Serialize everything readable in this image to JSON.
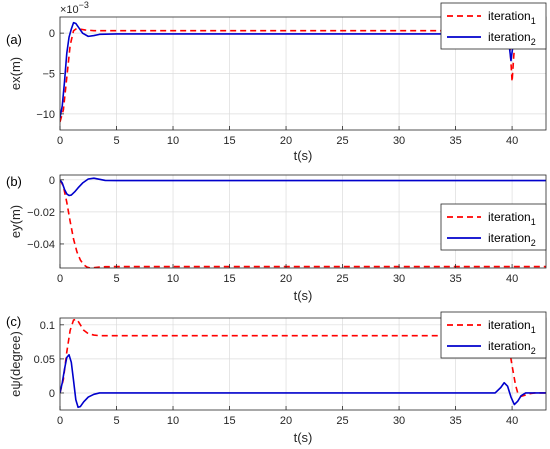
{
  "colors": {
    "iteration1": "#ff0000",
    "iteration2": "#0000cc",
    "grid": "#dcdcdc",
    "axis": "#262626"
  },
  "chart_data": [
    {
      "type": "line",
      "panel_label": "(a)",
      "exponent_label": "×10",
      "exponent_power": "−3",
      "xlabel": "t(s)",
      "ylabel": "ex(m)",
      "xlim": [
        0,
        43
      ],
      "ylim": [
        -12,
        2
      ],
      "xticks": [
        0,
        5,
        10,
        15,
        20,
        25,
        30,
        35,
        40
      ],
      "yticks": [
        -10,
        -5,
        0
      ],
      "grid": true,
      "legend_position": "top-right",
      "series": [
        {
          "name": "iteration",
          "subscript": "1",
          "style": "dashed",
          "x": [
            0,
            0.3,
            0.6,
            0.9,
            1.2,
            1.5,
            1.8,
            2.2,
            2.6,
            3,
            5,
            10,
            20,
            30,
            38.5,
            39,
            39.5,
            39.7,
            39.85,
            40,
            40.15,
            40.35,
            40.6,
            41,
            41.5,
            42,
            43
          ],
          "y": [
            -11,
            -9.5,
            -5.5,
            -1.5,
            0.3,
            0.6,
            0.5,
            0.4,
            0.35,
            0.3,
            0.3,
            0.3,
            0.3,
            0.3,
            0.3,
            0.6,
            1.2,
            0.5,
            -2.5,
            -6,
            -2.8,
            0.3,
            1.2,
            0.6,
            0.3,
            0.3,
            0.3
          ]
        },
        {
          "name": "iteration",
          "subscript": "2",
          "style": "solid",
          "x": [
            0,
            0.2,
            0.4,
            0.6,
            0.8,
            1,
            1.2,
            1.4,
            1.7,
            2,
            2.5,
            3,
            3.5,
            5,
            10,
            20,
            30,
            38.5,
            39,
            39.4,
            39.7,
            39.9,
            40.1,
            40.3,
            40.6,
            41,
            41.5,
            42,
            43
          ],
          "y": [
            -10.5,
            -9,
            -6,
            -2.5,
            -0.5,
            0.5,
            1.3,
            1.2,
            0.6,
            0,
            -0.4,
            -0.3,
            -0.15,
            -0.1,
            -0.1,
            -0.1,
            -0.1,
            -0.1,
            0.4,
            0.9,
            -1,
            -3.4,
            -1.3,
            0.6,
            0.9,
            0.2,
            -0.1,
            -0.1,
            -0.1
          ]
        }
      ]
    },
    {
      "type": "line",
      "panel_label": "(b)",
      "xlabel": "t(s)",
      "ylabel": "ey(m)",
      "xlim": [
        0,
        43
      ],
      "ylim": [
        -0.055,
        0.003
      ],
      "xticks": [
        0,
        5,
        10,
        15,
        20,
        25,
        30,
        35,
        40
      ],
      "yticks": [
        -0.04,
        -0.02,
        0
      ],
      "grid": true,
      "legend_position": "right",
      "series": [
        {
          "name": "iteration",
          "subscript": "1",
          "style": "dashed",
          "x": [
            0,
            0.3,
            0.6,
            0.9,
            1.2,
            1.5,
            1.8,
            2.1,
            2.4,
            2.7,
            3,
            3.5,
            4,
            5,
            10,
            20,
            30,
            40,
            43
          ],
          "y": [
            0,
            -0.004,
            -0.014,
            -0.026,
            -0.037,
            -0.045,
            -0.05,
            -0.053,
            -0.0545,
            -0.055,
            -0.0548,
            -0.0544,
            -0.0542,
            -0.0541,
            -0.0541,
            -0.0541,
            -0.0541,
            -0.0541,
            -0.0541
          ]
        },
        {
          "name": "iteration",
          "subscript": "2",
          "style": "solid",
          "x": [
            0,
            0.2,
            0.4,
            0.6,
            0.8,
            1,
            1.3,
            1.6,
            2,
            2.5,
            3,
            3.5,
            4,
            5,
            10,
            20,
            30,
            40,
            43
          ],
          "y": [
            0,
            -0.002,
            -0.006,
            -0.0088,
            -0.0098,
            -0.0095,
            -0.0075,
            -0.005,
            -0.002,
            0.0005,
            0.001,
            0.0003,
            -0.0004,
            -0.0005,
            -0.0005,
            -0.0005,
            -0.0005,
            -0.0005,
            -0.0005
          ]
        }
      ]
    },
    {
      "type": "line",
      "panel_label": "(c)",
      "xlabel": "t(s)",
      "ylabel": "eψ(degree)",
      "xlim": [
        0,
        43
      ],
      "ylim": [
        -0.025,
        0.11
      ],
      "xticks": [
        0,
        5,
        10,
        15,
        20,
        25,
        30,
        35,
        40
      ],
      "yticks": [
        0,
        0.05,
        0.1
      ],
      "grid": true,
      "legend_position": "top-right",
      "series": [
        {
          "name": "iteration",
          "subscript": "1",
          "style": "dashed",
          "x": [
            0,
            0.3,
            0.6,
            0.9,
            1.2,
            1.5,
            1.8,
            2.1,
            2.5,
            3,
            3.5,
            4,
            5,
            10,
            20,
            30,
            38.5,
            39,
            39.4,
            39.7,
            40,
            40.3,
            40.5,
            40.8,
            41.2,
            41.6,
            42,
            43
          ],
          "y": [
            0,
            0.02,
            0.06,
            0.092,
            0.107,
            0.108,
            0.1,
            0.092,
            0.087,
            0.085,
            0.084,
            0.084,
            0.084,
            0.084,
            0.084,
            0.084,
            0.084,
            0.09,
            0.088,
            0.07,
            0.04,
            0.012,
            0,
            -0.005,
            -0.003,
            -0.001,
            0,
            0
          ]
        },
        {
          "name": "iteration",
          "subscript": "2",
          "style": "solid",
          "x": [
            0,
            0.2,
            0.4,
            0.6,
            0.8,
            1,
            1.2,
            1.4,
            1.6,
            1.8,
            2.1,
            2.5,
            3,
            3.5,
            4,
            5,
            10,
            20,
            30,
            38.5,
            39,
            39.3,
            39.6,
            39.9,
            40.2,
            40.5,
            40.8,
            41.2,
            42,
            43
          ],
          "y": [
            0,
            0.015,
            0.035,
            0.052,
            0.056,
            0.045,
            0.018,
            -0.01,
            -0.021,
            -0.02,
            -0.013,
            -0.006,
            -0.002,
            0,
            0,
            0,
            0,
            0,
            0,
            0,
            0.008,
            0.015,
            0.01,
            -0.006,
            -0.017,
            -0.012,
            -0.004,
            0,
            0,
            0
          ]
        }
      ]
    }
  ]
}
